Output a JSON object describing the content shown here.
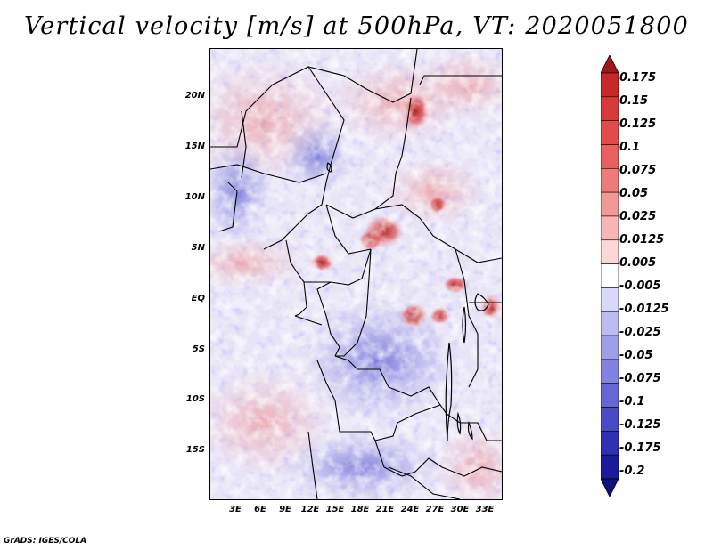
{
  "title": "Vertical velocity [m/s] at 500hPa, VT: 2020051800",
  "map": {
    "latitude_labels": [
      "20N",
      "15N",
      "10N",
      "5N",
      "EQ",
      "5S",
      "10S",
      "15S"
    ],
    "latitude_values": [
      20,
      15,
      10,
      5,
      0,
      -5,
      -10,
      -15
    ],
    "longitude_labels": [
      "3E",
      "6E",
      "9E",
      "12E",
      "15E",
      "18E",
      "21E",
      "24E",
      "27E",
      "30E",
      "33E"
    ],
    "longitude_values": [
      3,
      6,
      9,
      12,
      15,
      18,
      21,
      24,
      27,
      30,
      33
    ],
    "extent": {
      "lon_min": 0,
      "lon_max": 35,
      "lat_min": -20,
      "lat_max": 25
    },
    "field": "Vertical velocity",
    "level": "500hPa",
    "valid_time": "2020051800"
  },
  "colorbar": {
    "labels": [
      "0.175",
      "0.15",
      "0.125",
      "0.1",
      "0.075",
      "0.05",
      "0.025",
      "0.0125",
      "0.005",
      "-0.005",
      "-0.0125",
      "-0.025",
      "-0.05",
      "-0.075",
      "-0.1",
      "-0.125",
      "-0.175",
      "-0.2"
    ],
    "colors": [
      "#b11a1a",
      "#c82828",
      "#d83a3a",
      "#e24b4b",
      "#e86060",
      "#ee7a7a",
      "#f39898",
      "#f7b5b5",
      "#fbd7d7",
      "#ffffff",
      "#d8d8f8",
      "#bcbcf2",
      "#9e9ee9",
      "#8282e0",
      "#6666d4",
      "#4a4ac6",
      "#3030b4",
      "#1a1a9a",
      "#101080"
    ],
    "top_arrow_color": "#a01616",
    "bottom_arrow_color": "#10107a"
  },
  "credit": "GrADS: IGES/COLA"
}
